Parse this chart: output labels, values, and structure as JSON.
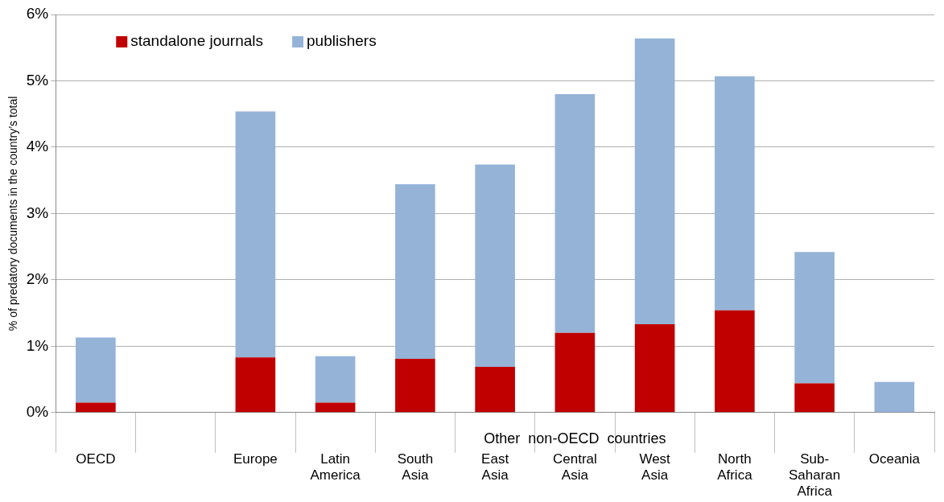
{
  "chart_data": {
    "type": "bar",
    "stacked": true,
    "categories": [
      "OECD",
      null,
      "Europe",
      "Latin America",
      "South Asia",
      "East Asia",
      "Central Asia",
      "West Asia",
      "North Africa",
      "Sub-Saharan Africa",
      "Oceania"
    ],
    "series": [
      {
        "name": "standalone journals",
        "color": "#c00000",
        "values": [
          0.15,
          null,
          0.83,
          0.15,
          0.81,
          0.69,
          1.2,
          1.33,
          1.54,
          0.44,
          0
        ]
      },
      {
        "name": "publishers",
        "color": "#95b3d7",
        "values": [
          0.98,
          null,
          3.71,
          0.7,
          2.63,
          3.05,
          3.6,
          4.31,
          3.53,
          1.98,
          0.46
        ]
      }
    ],
    "ylabel": "% of predatory documents in the country’s total",
    "ylim": [
      0,
      6
    ],
    "yticks": [
      {
        "value": 0,
        "label": "0%"
      },
      {
        "value": 1,
        "label": "1%"
      },
      {
        "value": 2,
        "label": "2%"
      },
      {
        "value": 3,
        "label": "3%"
      },
      {
        "value": 4,
        "label": "4%"
      },
      {
        "value": 5,
        "label": "5%"
      },
      {
        "value": 6,
        "label": "6%"
      }
    ],
    "grid": "y",
    "legend": "top left",
    "annotations": [
      "Other  non-OECD  countries"
    ]
  }
}
